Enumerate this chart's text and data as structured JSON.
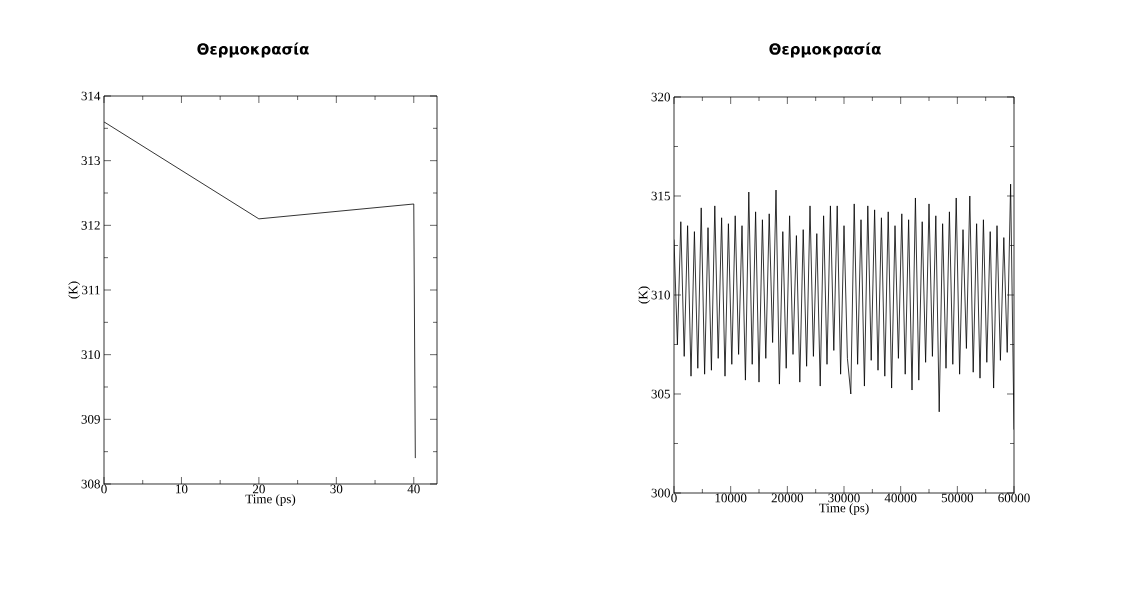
{
  "chart_data": [
    {
      "type": "line",
      "title": "Θερμοκρασία",
      "xlabel": "Time (ps)",
      "ylabel": "(K)",
      "x": [
        0,
        20,
        40,
        40.2
      ],
      "series": [
        {
          "color": "#000000",
          "values": [
            313.6,
            312.1,
            312.33,
            308.4
          ]
        }
      ],
      "xlim": [
        0,
        43
      ],
      "ylim": [
        308,
        314
      ],
      "xticks": [
        0,
        {
          "value": 5,
          "label": null
        },
        10,
        {
          "value": 15,
          "label": null
        },
        20,
        {
          "value": 25,
          "label": null
        },
        30,
        {
          "value": 35,
          "label": null
        },
        40
      ],
      "yticks": [
        308,
        {
          "value": 308.5,
          "label": null
        },
        309,
        {
          "value": 309.5,
          "label": null
        },
        310,
        {
          "value": 310.5,
          "label": null
        },
        311,
        {
          "value": 311.5,
          "label": null
        },
        312,
        {
          "value": 312.5,
          "label": null
        },
        313,
        {
          "value": 313.5,
          "label": null
        },
        314
      ],
      "marker": "none",
      "line_style": "solid"
    },
    {
      "type": "line",
      "title": "Θερμοκρασία",
      "xlabel": "Time (ps)",
      "ylabel": "(K)",
      "x": [
        0,
        600,
        1200,
        1800,
        2400,
        3000,
        3600,
        4200,
        4800,
        5400,
        6000,
        6600,
        7200,
        7800,
        8400,
        9000,
        9600,
        10200,
        10800,
        11400,
        12000,
        12600,
        13200,
        13800,
        14400,
        15000,
        15600,
        16200,
        16800,
        17400,
        18000,
        18600,
        19200,
        19800,
        20400,
        21000,
        21600,
        22200,
        22800,
        23400,
        24000,
        24600,
        25200,
        25800,
        26400,
        27000,
        27600,
        28200,
        28800,
        29400,
        30000,
        30600,
        31200,
        31800,
        32400,
        33000,
        33600,
        34200,
        34800,
        35400,
        36000,
        36600,
        37200,
        37800,
        38400,
        39000,
        39600,
        40200,
        40800,
        41400,
        42000,
        42600,
        43200,
        43800,
        44400,
        45000,
        45600,
        46200,
        46800,
        47400,
        48000,
        48600,
        49200,
        49800,
        50400,
        51000,
        51600,
        52200,
        52800,
        53400,
        54000,
        54600,
        55200,
        55800,
        56400,
        57000,
        57600,
        58200,
        58800,
        59400,
        60000
      ],
      "series": [
        {
          "color": "#000000",
          "values": [
            312.8,
            307.5,
            313.7,
            306.9,
            313.5,
            305.9,
            313.2,
            306.3,
            314.4,
            306.0,
            313.4,
            306.2,
            314.5,
            306.8,
            313.9,
            305.9,
            313.6,
            306.5,
            314.0,
            307.0,
            313.5,
            305.7,
            315.2,
            306.5,
            314.2,
            305.6,
            313.8,
            306.8,
            314.1,
            307.6,
            315.3,
            305.5,
            313.2,
            306.3,
            314.0,
            307.0,
            313.0,
            305.6,
            313.3,
            306.4,
            314.5,
            306.9,
            313.1,
            305.4,
            314.0,
            306.5,
            314.5,
            307.2,
            314.5,
            306.0,
            313.5,
            306.8,
            305.0,
            314.6,
            306.5,
            313.8,
            305.4,
            314.5,
            306.7,
            314.3,
            306.2,
            313.9,
            305.9,
            314.2,
            305.3,
            313.5,
            306.8,
            314.1,
            306.0,
            313.8,
            305.2,
            314.9,
            305.7,
            313.7,
            306.6,
            314.6,
            306.9,
            314.0,
            304.1,
            313.6,
            306.3,
            314.2,
            306.5,
            314.9,
            306.0,
            313.3,
            307.3,
            315.0,
            306.1,
            313.6,
            305.8,
            313.8,
            306.6,
            313.2,
            305.3,
            313.5,
            306.7,
            312.9,
            307.1,
            315.6,
            303.2
          ]
        }
      ],
      "xlim": [
        0,
        60000
      ],
      "ylim": [
        300,
        320
      ],
      "xticks": [
        0,
        {
          "value": 5000,
          "label": null
        },
        10000,
        {
          "value": 15000,
          "label": null
        },
        20000,
        {
          "value": 25000,
          "label": null
        },
        30000,
        {
          "value": 35000,
          "label": null
        },
        40000,
        {
          "value": 45000,
          "label": null
        },
        50000,
        {
          "value": 55000,
          "label": null
        },
        60000
      ],
      "yticks": [
        300,
        {
          "value": 302.5,
          "label": null
        },
        305,
        {
          "value": 307.5,
          "label": null
        },
        310,
        {
          "value": 312.5,
          "label": null
        },
        315,
        {
          "value": 317.5,
          "label": null
        },
        320
      ],
      "marker": "none",
      "line_style": "solid"
    }
  ]
}
